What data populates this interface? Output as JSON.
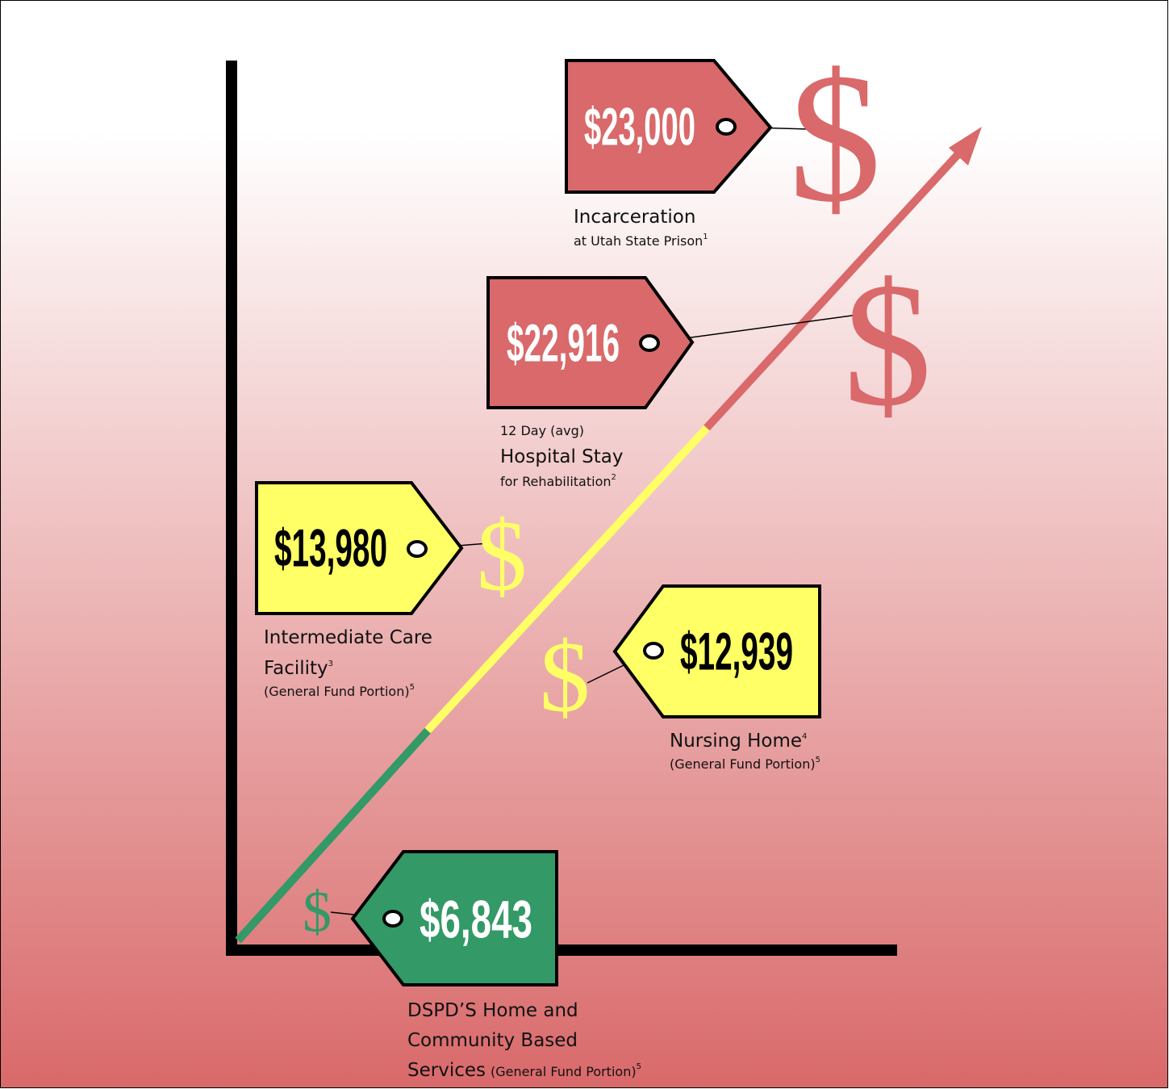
{
  "tags": [
    {
      "price": "$23,000",
      "symbol": "$",
      "lines": [
        {
          "text": "Incarceration"
        },
        {
          "text": "at Utah State Prison",
          "sup": "1"
        }
      ]
    },
    {
      "price": "$22,916",
      "symbol": "$",
      "lines": [
        {
          "text": "12 Day (avg)"
        },
        {
          "text": "Hospital Stay"
        },
        {
          "text": "for Rehabilitation",
          "sup": "2"
        }
      ]
    },
    {
      "price": "$13,980",
      "symbol": "$",
      "lines": [
        {
          "text": "Intermediate Care"
        },
        {
          "text": "Facility",
          "sup": "3"
        },
        {
          "text": "(General Fund Portion)",
          "sup": "5"
        }
      ]
    },
    {
      "price": "$12,939",
      "symbol": "$",
      "lines": [
        {
          "text": "Nursing Home",
          "sup": "4"
        },
        {
          "text": "(General Fund Portion)",
          "sup": "5"
        }
      ]
    },
    {
      "price": "$6,843",
      "symbol": "$",
      "lines": [
        {
          "text": "DSPD’S Home and"
        },
        {
          "text": "Community Based"
        },
        {
          "text": "Services",
          "small": "(General Fund Portion)",
          "sup": "5"
        }
      ]
    }
  ]
}
